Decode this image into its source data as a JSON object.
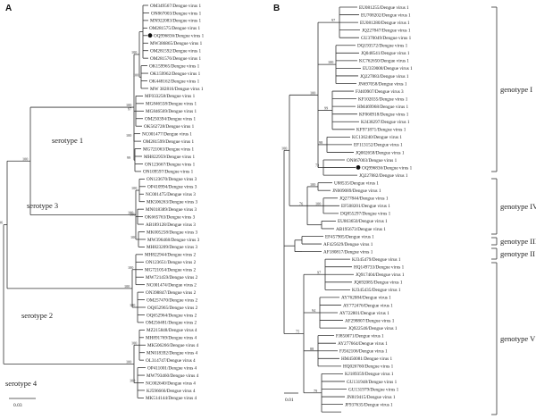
{
  "panelA": {
    "label": "A",
    "scale": "0.03",
    "leaves": [
      "OM349567/Dengue virus 1",
      "ON867003/Dengue virus 1",
      "MN922083/Dengue virus 1",
      "OM281575/Dengue virus 1",
      "OQ996836/Dengue virus 1",
      "MW386865/Dengue virus 1",
      "OM281592/Dengue virus 1",
      "OM281576/Dengue virus 1",
      "OK159965/Dengue virus 1",
      "OK159962/Dengue virus 1",
      "OK448162/Dengue virus 1",
      "MW 382816/Dengue virus 1",
      "MF033258/Dengue virus 1",
      "MG846558/Dengue virus 1",
      "MG846569/Dengue virus 1",
      "OM250394/Dengue virus 1",
      "OK562728/Dengue virus 1",
      "NC001477/Dengue virus 1",
      "OM281599/Dengue virus 1",
      "MG721063/Dengue virus 1",
      "MH822959/Dengue virus 1",
      "ON123667/Dengue virus 1",
      "ON109597/Dengue virus 1",
      "ON123670/Dengue virus 3",
      "OP410994/Dengue virus 3",
      "NC001475/Dengue virus 3",
      "MK506263/Dengue virus 3",
      "MN018389/Dengue virus 3",
      "OK665763/Dengue virus 3",
      "AB189128/Dengue virus 3",
      "MK005258/Dengue virus 3",
      "MW396468/Dengue virus 3",
      "MH823209/Dengue virus 3",
      "MH822944/Dengue virus 2",
      "ON123651/Dengue virus 2",
      "MG721054/Dengue virus 2",
      "MW721459/Dengue virus 2",
      "NC001474/Dengue virus 2",
      "ON398847/Dengue virus 2",
      "OM257470/Dengue virus 2",
      "OQ652965/Dengue virus 2",
      "OQ652964/Dengue virus 2",
      "OM256481/Dengue virus 2",
      "MZ215848/Dengue virus 4",
      "MH891769/Dengue virus 4",
      "MK506266/Dengue virus 4",
      "MN018392/Dengue virus 4",
      "OL314747/Dengue virus 4",
      "OP411001/Dengue virus 4",
      "MW793460/Dengue virus 4",
      "NC002640/Dengue virus 4",
      "KJ596666/Dengue virus 4",
      "MK514144/Dengue virus 4"
    ],
    "clades": [
      "serotype 1",
      "serotype 3",
      "serotype 2",
      "serotype 4"
    ],
    "bootstrap": [
      "100",
      "100",
      "97",
      "100",
      "99",
      "100",
      "100",
      "100",
      "100",
      "100",
      "100",
      "100",
      "100",
      "100",
      "96",
      "100",
      "100",
      "100",
      "100",
      "100",
      "100",
      "100",
      "100",
      "77",
      "100"
    ]
  },
  "panelB": {
    "label": "B",
    "scale": "0.01",
    "leaves": [
      "EU081255/Dengue virus 1",
      "EU708202/Dengue virus 1",
      "EU081280/Dengue virus 1",
      "JQ227847/Dengue virus 1",
      "GU370049/Dengue virus 1",
      "DQ193572/Dengue virus 1",
      "JQ048541/Dengue virus 1",
      "KC762650/Dengue virus 1",
      "EU359008/Dengue virus 1",
      "JQ227883/Dengue virus 1",
      "JN697058/Dengue virus 1",
      "FJ469907/Dengue virus 3",
      "KF102035/Dengue virus 1",
      "HM469968/Dengue virus 1",
      "KF060918/Dengue virus 1",
      "KJ438297/Dengue virus 1",
      "KF971871/Dengue virus 1",
      "KC136240/Dengue virus 1",
      "EF113152/Dengue virus 1",
      "JQ002658/Dengue virus 1",
      "ON867003/Dengue virus 1",
      "OQ996836/Dengue virus 1",
      "JQ227882/Dengue virus 1",
      "U88535/Dengue virus 1",
      "JN009089/Dengue virus 1",
      "JQ277844/Dengue virus 1",
      "EF508201/Dengue virus 1",
      "DQ855297/Dengue virus 1",
      "EU863650/Dengue virus 1",
      "AB195673/Dengue virus 1",
      "EF457905/Dengue virus 1",
      "AF425629/Dengue virus 1",
      "AF180817/Dengue virus 1",
      "KJ345479/Dengue virus 1",
      "HQ149733/Dengue virus 1",
      "JQ917404/Dengue virus 1",
      "JQ692085/Dengue virus 1",
      "KJ345435/Dengue virus 1",
      "AY762084/Dengue virus 1",
      "AY772476/Dengue virus 1",
      "AY722801/Dengue virus 1",
      "AF298807/Dengue virus 1",
      "JQ922546/Dengue virus 1",
      "FJ850071/Dengue virus 1",
      "AY277664/Dengue virus 1",
      "FJ562106/Dengue virus 1",
      "HM450081/Dengue virus 1",
      "HQ026760/Dengue virus 1",
      "KJ189359/Dengue virus 1",
      "GU131948/Dengue virus 1",
      "GU131979/Dengue virus 1",
      "JN819415/Dengue virus 1",
      "JF937635/Dengue virus 1"
    ],
    "clades": [
      "genotype I",
      "genotype IV",
      "genotype III",
      "genotype II",
      "genotype V"
    ],
    "bootstrap": [
      "97",
      "100",
      "99",
      "98",
      "73",
      "100",
      "100",
      "100",
      "76",
      "100",
      "97",
      "94",
      "88",
      "79",
      "75",
      "64",
      "99",
      "95",
      "100",
      "100",
      "89",
      "94",
      "92"
    ]
  }
}
